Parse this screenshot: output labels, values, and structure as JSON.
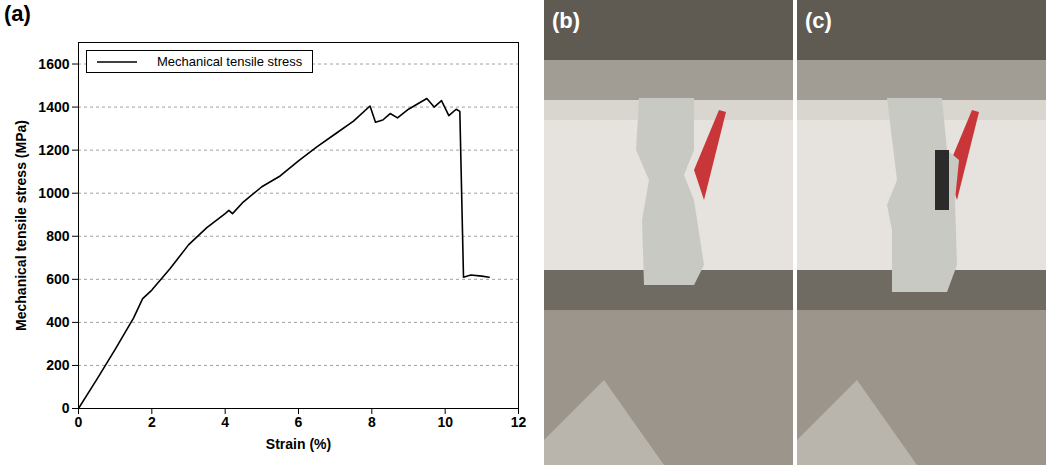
{
  "chart_data": {
    "type": "line",
    "panel_label": "(a)",
    "x_label": "Strain (%)",
    "y_label": "Mechanical tensile stress (MPa)",
    "xlim": [
      0,
      12
    ],
    "xticks": [
      0,
      2,
      4,
      6,
      8,
      10,
      12
    ],
    "ylim": [
      0,
      1700
    ],
    "yticks": [
      0,
      200,
      400,
      600,
      800,
      1000,
      1200,
      1400,
      1600
    ],
    "grid": true,
    "legend": "top-left",
    "series": [
      {
        "name": "Mechanical tensile stress",
        "color": "#000000",
        "x": [
          0,
          0.5,
          1,
          1.5,
          1.75,
          2,
          2.5,
          3,
          3.5,
          4,
          4.1,
          4.2,
          4.5,
          5,
          5.5,
          6,
          6.5,
          7,
          7.5,
          7.95,
          8.1,
          8.3,
          8.5,
          8.7,
          9,
          9.5,
          9.7,
          9.9,
          10.1,
          10.3,
          10.4,
          10.5,
          10.7,
          11,
          11.2
        ],
        "values": [
          0,
          135,
          275,
          420,
          510,
          550,
          650,
          760,
          840,
          905,
          920,
          905,
          960,
          1030,
          1080,
          1150,
          1215,
          1275,
          1335,
          1405,
          1330,
          1340,
          1370,
          1350,
          1390,
          1440,
          1400,
          1430,
          1360,
          1390,
          1380,
          610,
          620,
          615,
          610
        ]
      }
    ]
  },
  "photos": [
    {
      "label": "(b)"
    },
    {
      "label": "(c)"
    }
  ]
}
